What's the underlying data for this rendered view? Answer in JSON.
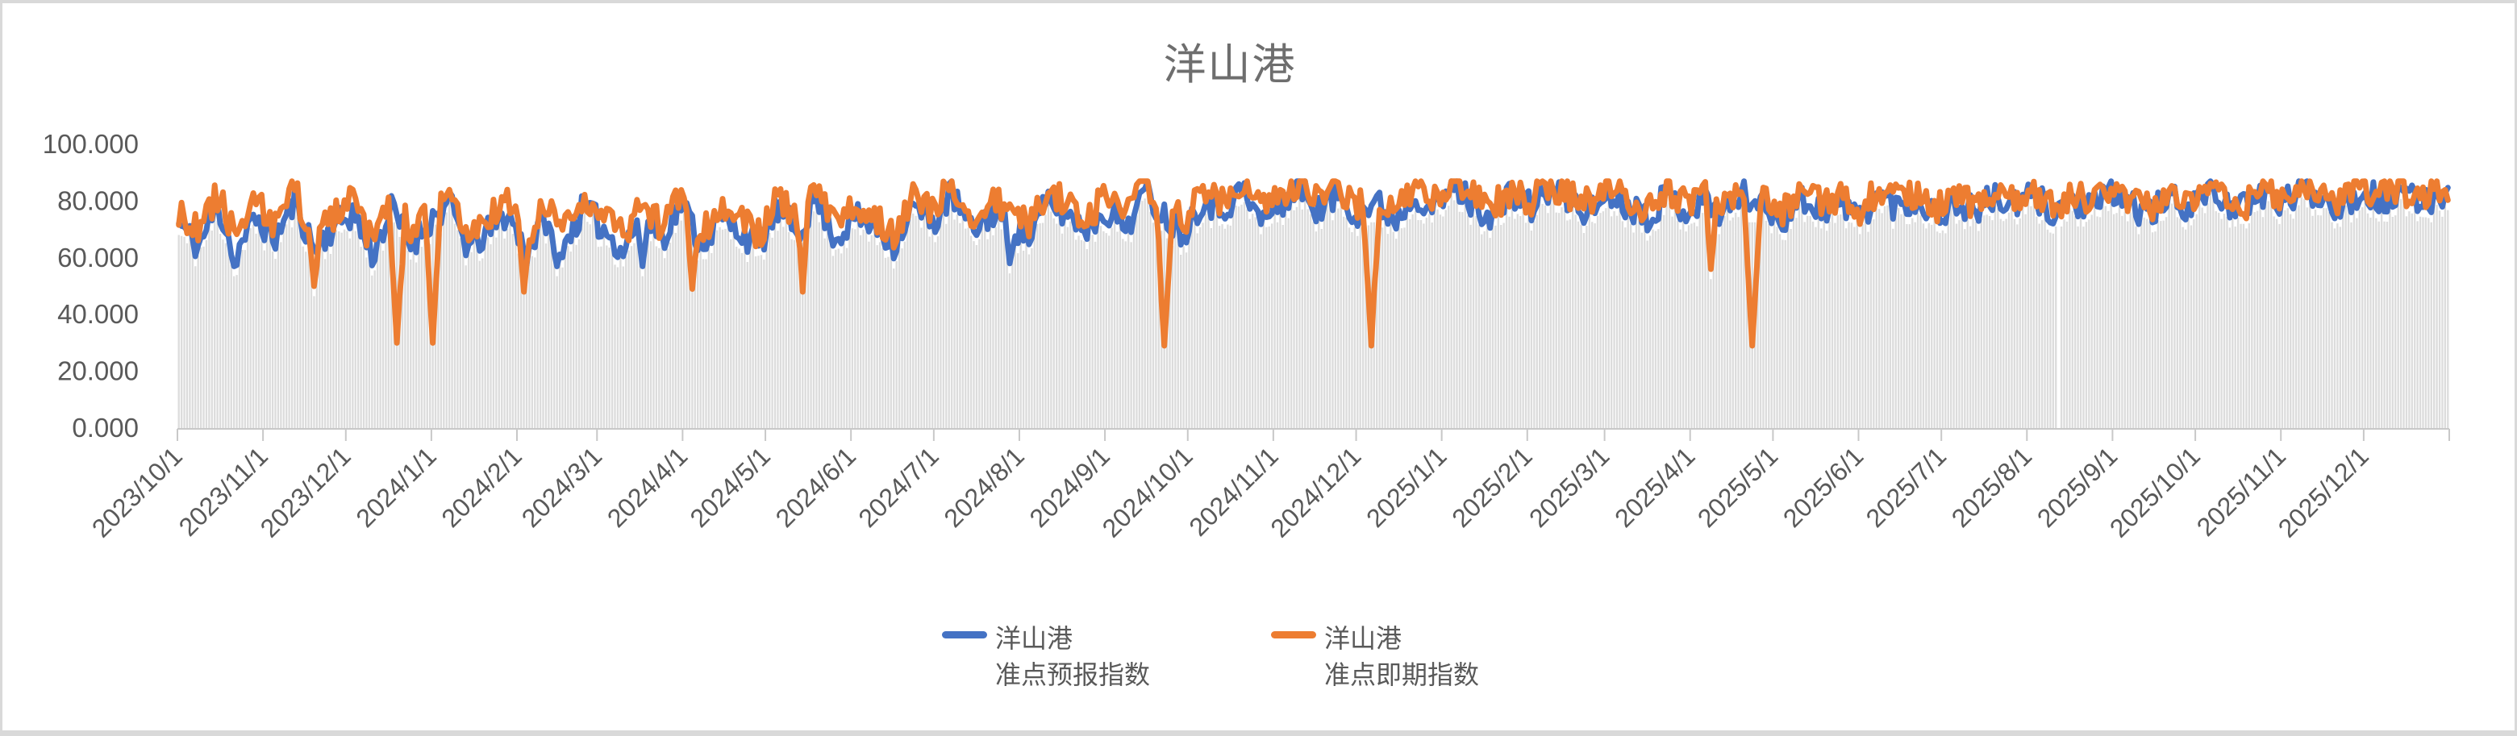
{
  "window": {
    "frame_color": "#D9D9D9",
    "chart_background": "#FFFFFF"
  },
  "chart_data": {
    "type": "line",
    "title": "洋山港",
    "title_color": "#6E6E6E",
    "grid": "off",
    "legend_position": "bottom-center",
    "y_axis": {
      "min": 0,
      "max": 100,
      "tick_step": 20,
      "tick_labels": [
        "0.000",
        "20.000",
        "40.000",
        "60.000",
        "80.000",
        "100.000"
      ],
      "label_color": "#595959"
    },
    "x_axis": {
      "labels": [
        "2023/10/1",
        "2023/11/1",
        "2023/12/1",
        "2024/1/1",
        "2024/2/1",
        "2024/3/1",
        "2024/4/1",
        "2024/5/1",
        "2024/6/1",
        "2024/7/1",
        "2024/8/1",
        "2024/9/1",
        "2024/10/1",
        "2024/11/1",
        "2024/12/1",
        "2025/1/1",
        "2025/2/1",
        "2025/3/1",
        "2025/4/1",
        "2025/5/1",
        "2025/6/1",
        "2025/7/1",
        "2025/8/1",
        "2025/9/1",
        "2025/10/1",
        "2025/11/1",
        "2025/12/1"
      ],
      "label_days": [
        0,
        31,
        61,
        92,
        123,
        152,
        183,
        213,
        244,
        274,
        305,
        336,
        366,
        397,
        427,
        458,
        489,
        517,
        548,
        578,
        609,
        639,
        670,
        701,
        731,
        762,
        792
      ],
      "total_days": 823,
      "label_color": "#595959",
      "tick_color": "#C8C8C8",
      "label_rotation_deg": -45
    },
    "background_columns": {
      "color": "#DCDCDC",
      "missing_days": [
        681
      ],
      "offset_below_lines": 3.5,
      "dip_ignore_below": 50,
      "fallback_level": 76
    },
    "series": [
      {
        "name": "洋山港\n准点预报指数",
        "color": "#4472C4",
        "anchor_step_days": 7,
        "anchors": [
          72,
          64,
          78,
          62,
          74,
          67,
          80,
          63,
          71,
          76,
          61,
          77,
          65,
          73,
          79,
          63,
          69,
          76,
          62,
          74,
          66,
          78,
          70,
          63,
          76,
          67,
          80,
          65,
          73,
          70,
          64,
          77,
          69,
          81,
          67,
          74,
          71,
          65,
          78,
          72,
          83,
          69,
          76,
          73,
          67,
          80,
          75,
          71,
          77,
          71,
          83,
          75,
          69,
          81,
          77,
          84,
          73,
          79,
          85,
          77,
          82,
          76,
          79,
          74,
          83,
          77,
          85,
          79,
          75,
          82,
          78,
          84,
          80,
          76,
          83,
          79,
          75,
          82,
          77,
          80,
          76,
          83,
          78,
          74,
          81,
          77,
          79,
          75,
          82,
          78,
          80,
          76,
          79,
          77,
          81,
          78,
          82,
          76,
          80,
          77,
          83,
          79,
          75,
          81,
          78,
          84,
          80,
          77,
          83,
          79,
          85,
          81,
          78,
          84,
          80,
          82,
          79,
          83
        ],
        "dips": [
          {
            "day": 20,
            "value": 57,
            "width": 2
          },
          {
            "day": 137,
            "value": 57,
            "width": 3
          },
          {
            "day": 168,
            "value": 57,
            "width": 2
          },
          {
            "day": 301,
            "value": 58,
            "width": 2
          }
        ]
      },
      {
        "name": "洋山港\n准点即期指数",
        "color": "#ED7D31",
        "anchor_step_days": 7,
        "anchors": [
          76,
          70,
          82,
          68,
          79,
          72,
          84,
          66,
          75,
          80,
          65,
          81,
          70,
          77,
          83,
          67,
          74,
          80,
          66,
          78,
          71,
          82,
          74,
          68,
          80,
          71,
          84,
          69,
          77,
          74,
          68,
          81,
          73,
          85,
          71,
          78,
          75,
          69,
          82,
          76,
          86,
          73,
          80,
          77,
          71,
          84,
          79,
          75,
          81,
          75,
          86,
          79,
          73,
          84,
          80,
          86,
          77,
          82,
          87,
          80,
          85,
          79,
          82,
          77,
          85,
          80,
          87,
          82,
          78,
          84,
          80,
          86,
          82,
          79,
          85,
          81,
          77,
          84,
          79,
          82,
          78,
          85,
          80,
          76,
          83,
          79,
          81,
          77,
          84,
          80,
          82,
          78,
          81,
          79,
          83,
          80,
          84,
          78,
          82,
          79,
          85,
          81,
          77,
          83,
          80,
          86,
          82,
          79,
          85,
          81,
          86,
          83,
          80,
          85,
          82,
          84,
          81,
          85
        ],
        "dips": [
          {
            "day": 49,
            "value": 50,
            "width": 2
          },
          {
            "day": 79,
            "value": 30,
            "width": 3
          },
          {
            "day": 92,
            "value": 30,
            "width": 3
          },
          {
            "day": 125,
            "value": 48,
            "width": 2
          },
          {
            "day": 186,
            "value": 49,
            "width": 2
          },
          {
            "day": 226,
            "value": 48,
            "width": 2
          },
          {
            "day": 357,
            "value": 29,
            "width": 3
          },
          {
            "day": 432,
            "value": 29,
            "width": 3
          },
          {
            "day": 555,
            "value": 56,
            "width": 2
          },
          {
            "day": 570,
            "value": 29,
            "width": 3
          }
        ]
      }
    ],
    "noise": {
      "seed": 11,
      "amplitude": 5.5,
      "clamp_min": 56,
      "clamp_max": 87
    }
  },
  "legend": {
    "entries": [
      {
        "label": "洋山港\n准点预报指数",
        "color": "#4472C4"
      },
      {
        "label": "洋山港\n准点即期指数",
        "color": "#ED7D31"
      }
    ]
  }
}
